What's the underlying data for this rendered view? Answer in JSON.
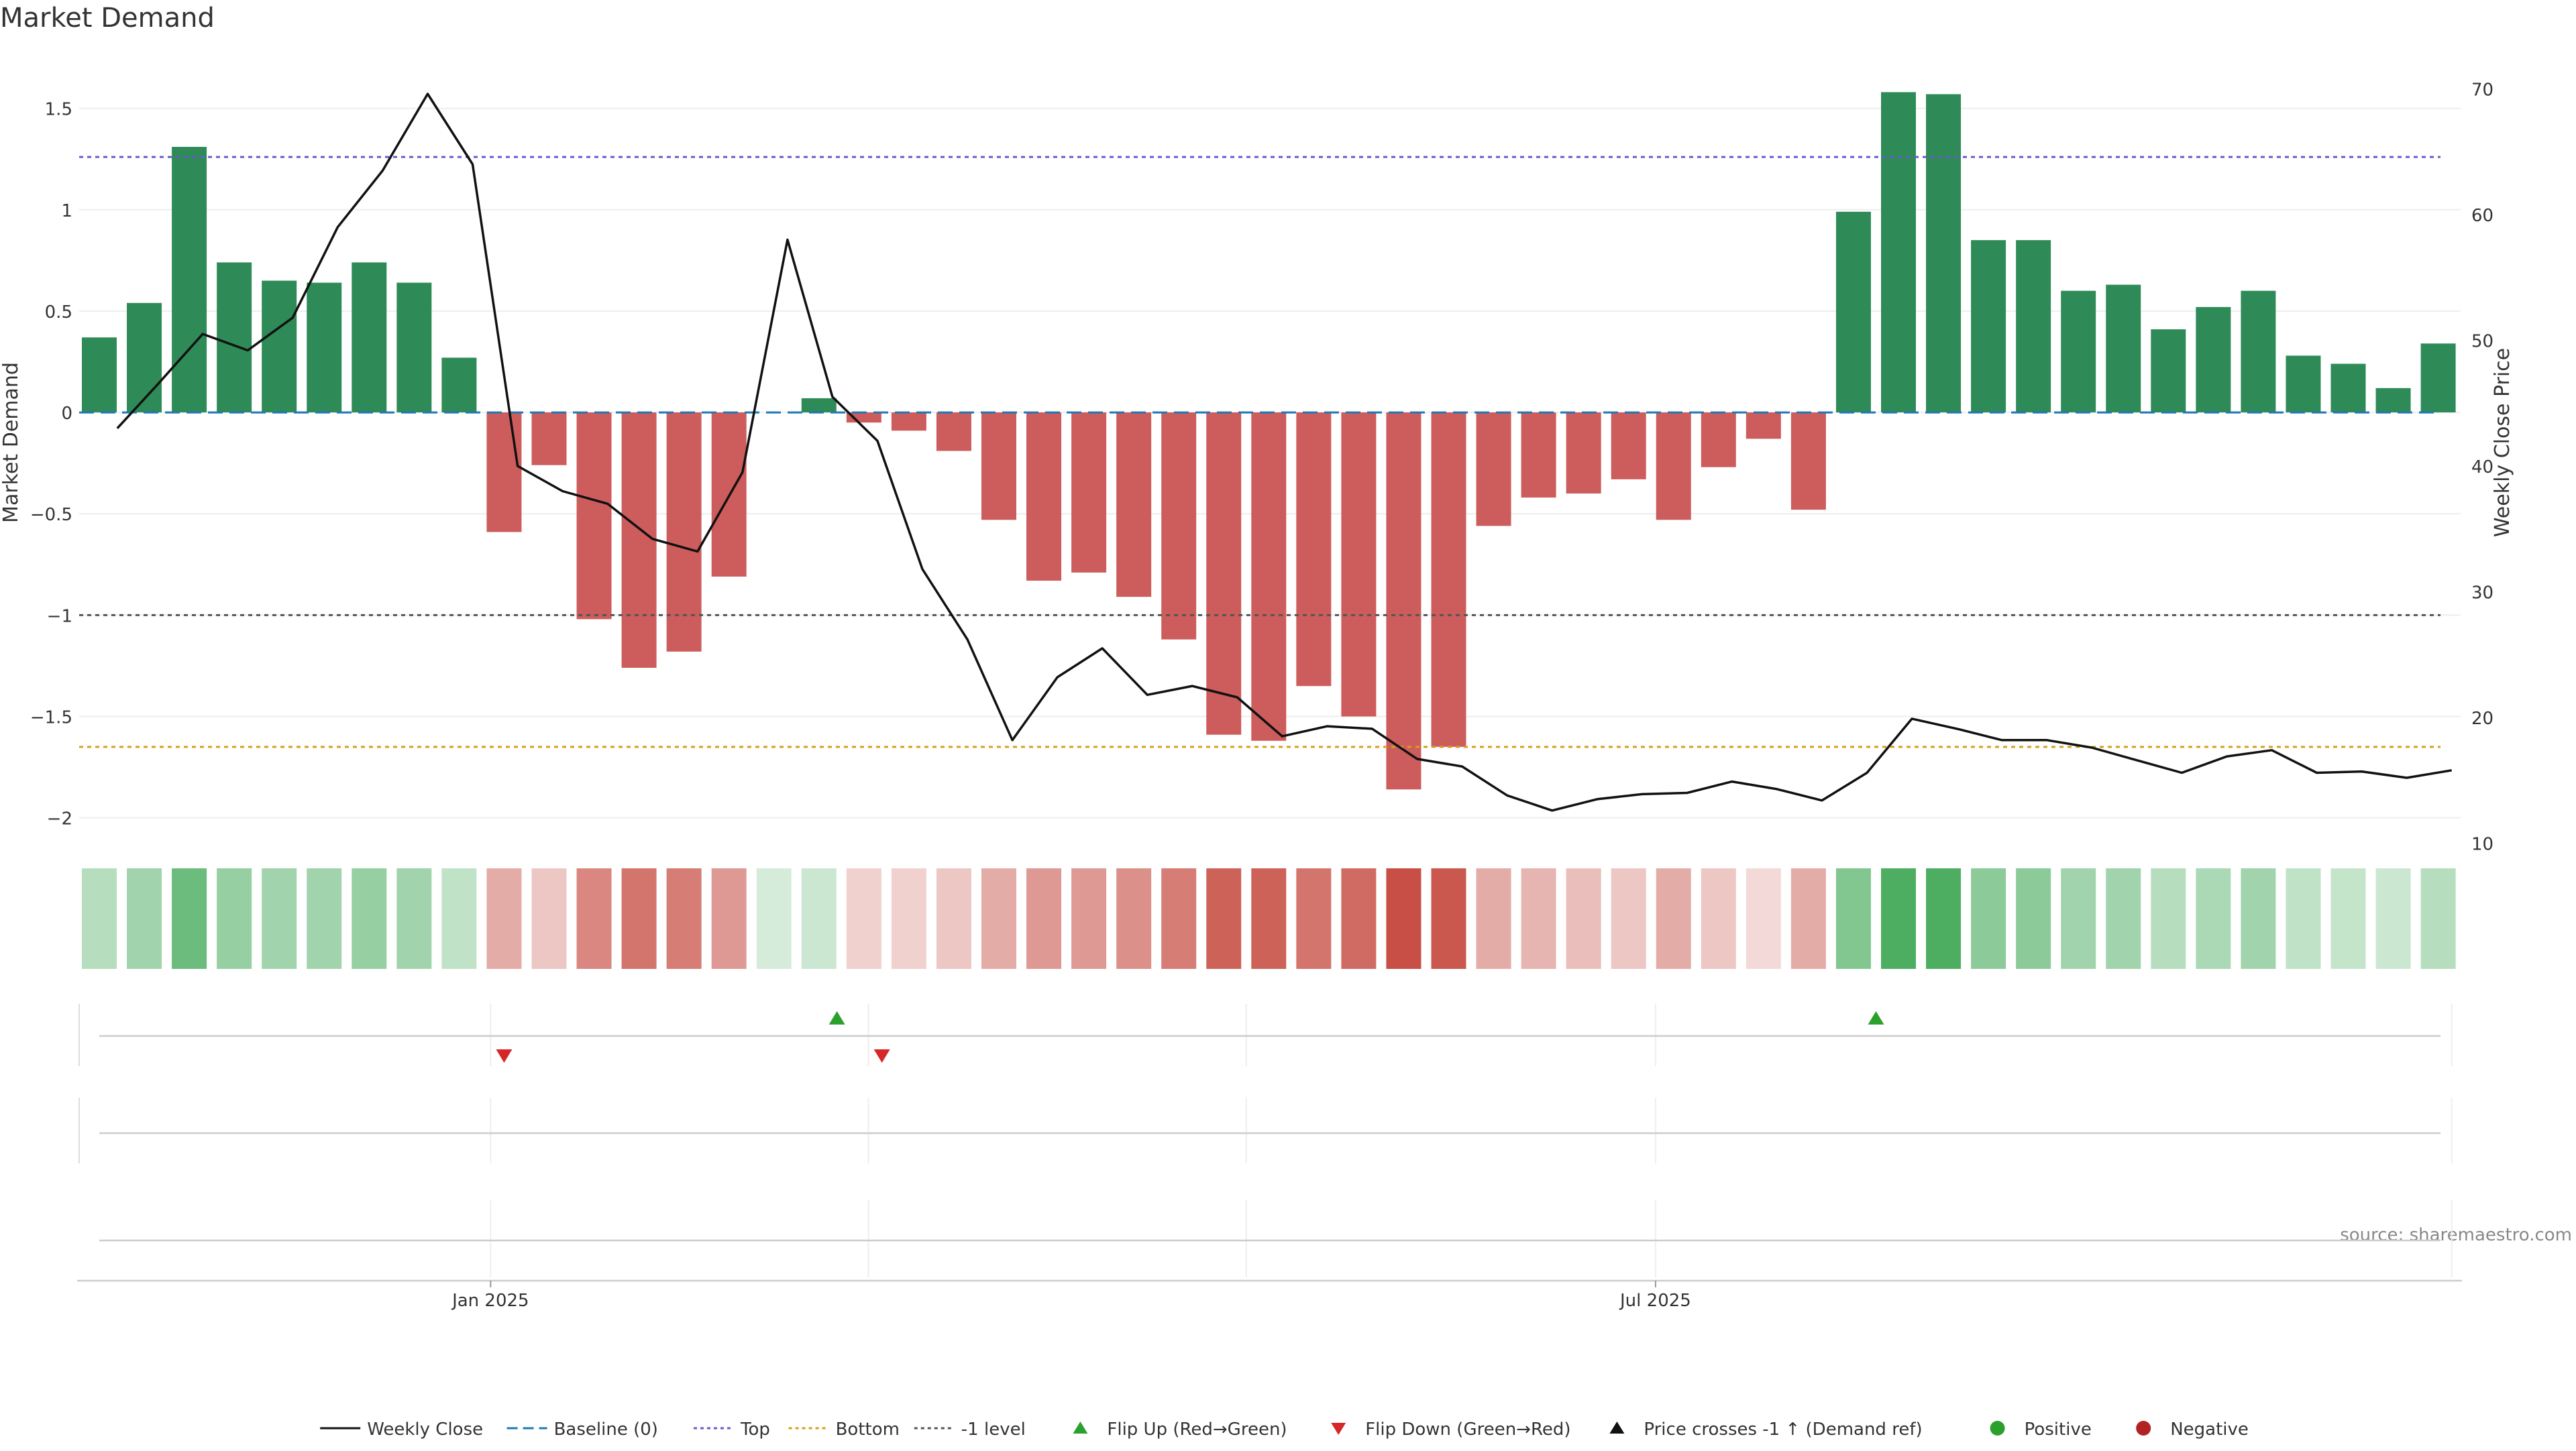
{
  "chart_data": {
    "type": "bar",
    "title": "Market Demand",
    "ylabel": "Market Demand",
    "y2label": "Weekly Close Price",
    "ylim": [
      -2.15,
      1.77
    ],
    "y2lim": [
      9.6,
      72.8
    ],
    "yticks": [
      {
        "value": 1.5,
        "label": "1.5"
      },
      {
        "value": 1,
        "label": "1"
      },
      {
        "value": 0.5,
        "label": "0.5"
      },
      {
        "value": 0,
        "label": "0"
      },
      {
        "value": -0.5,
        "label": "−0.5"
      },
      {
        "value": -1,
        "label": "−1"
      },
      {
        "value": -1.5,
        "label": "−1.5"
      },
      {
        "value": -2,
        "label": "−2"
      }
    ],
    "y2ticks": [
      {
        "value": 70,
        "label": "70"
      },
      {
        "value": 60,
        "label": "60"
      },
      {
        "value": 50,
        "label": "50"
      },
      {
        "value": 40,
        "label": "40"
      },
      {
        "value": 30,
        "label": "30"
      },
      {
        "value": 20,
        "label": "20"
      },
      {
        "value": 10,
        "label": "10"
      }
    ],
    "xticks": [
      {
        "index": 8.7,
        "label": "Jan 2025"
      },
      {
        "index": 34.6,
        "label": "Jul 2025"
      }
    ],
    "minor_vlines": [
      17.1,
      25.5,
      52.3
    ],
    "reference_lines": {
      "baseline": 0,
      "top": 1.26,
      "bottom": -1.65,
      "minus_one": -1
    },
    "colors": {
      "positive": "#2e8b57",
      "negative": "#cd5c5c",
      "price": "#111111",
      "baseline": "#1f77b4",
      "top": "#6a5acd",
      "bottom": "#d4a017",
      "minus_one": "#555555",
      "flip_up": "#2ca02c",
      "flip_down": "#d62728"
    },
    "series": [
      {
        "name": "Market Demand",
        "values": [
          0.37,
          0.54,
          1.31,
          0.74,
          0.65,
          0.64,
          0.74,
          0.64,
          0.27,
          -0.59,
          -0.26,
          -1.02,
          -1.26,
          -1.18,
          -0.81,
          0,
          0.07,
          -0.05,
          -0.09,
          -0.19,
          -0.53,
          -0.83,
          -0.79,
          -0.91,
          -1.12,
          -1.59,
          -1.62,
          -1.35,
          -1.5,
          -1.86,
          -1.65,
          -0.56,
          -0.42,
          -0.4,
          -0.33,
          -0.53,
          -0.27,
          -0.13,
          -0.48,
          0.99,
          1.58,
          1.57,
          0.85,
          0.85,
          0.6,
          0.63,
          0.41,
          0.52,
          0.6,
          0.28,
          0.24,
          0.12,
          0.34
        ]
      },
      {
        "name": "Weekly Close",
        "x": [
          0.4,
          1.3,
          2.3,
          3.3,
          4.3,
          5.3,
          6.3,
          7.3,
          8.3,
          9.3,
          10.3,
          11.3,
          12.3,
          13.3,
          14.3,
          15.3,
          16.3,
          17.3,
          18.3,
          19.3,
          20.3,
          21.3,
          22.3,
          23.3,
          24.3,
          25.3,
          26.3,
          27.3,
          28.3,
          29.3,
          30.3,
          31.3,
          32.3,
          33.3,
          34.3,
          35.3,
          36.3,
          37.3,
          38.3,
          39.3,
          40.3,
          41.3,
          42.3,
          43.3,
          44.3,
          45.3,
          46.3,
          47.3,
          48.3,
          49.3,
          50.3,
          51.3,
          52.3
        ],
        "values": [
          43,
          46.5,
          50.5,
          49.2,
          51.8,
          59,
          63.5,
          69.6,
          64,
          40,
          38,
          37,
          34.2,
          33.2,
          39.5,
          58,
          45.5,
          42,
          31.8,
          26.2,
          18.2,
          23.2,
          25.5,
          21.8,
          22.5,
          21.6,
          18.5,
          19.3,
          19.1,
          16.7,
          16.1,
          13.8,
          12.6,
          13.5,
          13.9,
          14,
          14.9,
          14.3,
          13.4,
          15.6,
          19.9,
          19.1,
          18.2,
          18.2,
          17.6,
          16.6,
          15.6,
          16.9,
          17.4,
          15.6,
          15.7,
          15.2,
          15.8
        ]
      }
    ],
    "heat_strip": {
      "alphas": [
        0.35,
        0.45,
        0.7,
        0.5,
        0.45,
        0.45,
        0.5,
        0.45,
        0.3,
        0.45,
        0.3,
        0.65,
        0.75,
        0.7,
        0.55,
        0.2,
        0.25,
        0.25,
        0.25,
        0.3,
        0.45,
        0.55,
        0.55,
        0.6,
        0.7,
        0.85,
        0.85,
        0.75,
        0.8,
        0.95,
        0.9,
        0.45,
        0.4,
        0.35,
        0.3,
        0.45,
        0.3,
        0.2,
        0.45,
        0.6,
        0.85,
        0.85,
        0.55,
        0.55,
        0.45,
        0.45,
        0.35,
        0.4,
        0.45,
        0.3,
        0.28,
        0.25,
        0.35
      ]
    },
    "flip_events": [
      {
        "type": "down",
        "index": 9
      },
      {
        "type": "up",
        "index": 16.4
      },
      {
        "type": "down",
        "index": 17.4
      },
      {
        "type": "up",
        "index": 39.5
      }
    ],
    "legend": [
      {
        "label": "Weekly Close",
        "kind": "line",
        "color": "#111111"
      },
      {
        "label": "Baseline (0)",
        "kind": "dashed",
        "color": "#1f77b4"
      },
      {
        "label": "Top",
        "kind": "dotted",
        "color": "#6a5acd"
      },
      {
        "label": "Bottom",
        "kind": "dotted",
        "color": "#d4a017"
      },
      {
        "label": "-1 level",
        "kind": "dotted",
        "color": "#555555"
      },
      {
        "label": "Flip Up (Red→Green)",
        "kind": "tri-up",
        "color": "#2ca02c"
      },
      {
        "label": "Flip Down (Green→Red)",
        "kind": "tri-down",
        "color": "#d62728"
      },
      {
        "label": "Price crosses -1 ↑ (Demand ref)",
        "kind": "tri-up",
        "color": "#111111"
      },
      {
        "label": "Positive",
        "kind": "dot",
        "color": "#2ca02c"
      },
      {
        "label": "Negative",
        "kind": "dot",
        "color": "#b22222"
      }
    ],
    "source": "source: sharemaestro.com"
  }
}
